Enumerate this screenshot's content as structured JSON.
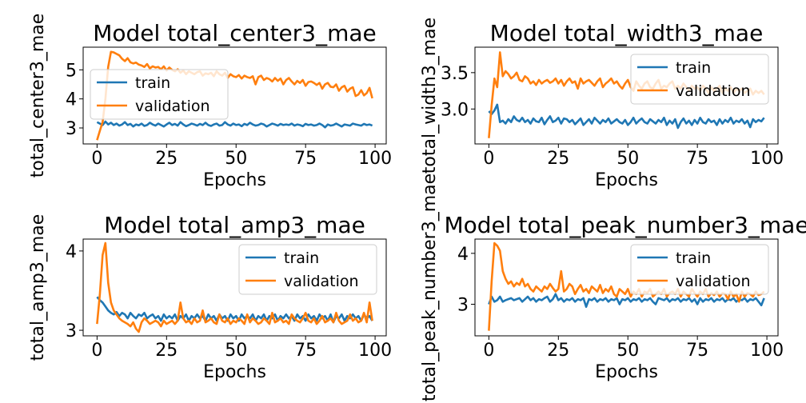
{
  "colors": {
    "train": "#1f77b4",
    "validation": "#ff7f0e"
  },
  "chart_data": [
    {
      "type": "line",
      "title": "Model total_center3_mae",
      "xlabel": "Epochs",
      "ylabel": "total_center3_mae",
      "xlim": [
        -5,
        104
      ],
      "ylim": [
        2.45,
        5.78
      ],
      "xticks": [
        0,
        25,
        50,
        75,
        100
      ],
      "xtick_labels": [
        "0",
        "25",
        "50",
        "75",
        "100"
      ],
      "yticks": [
        3,
        4,
        5
      ],
      "ytick_labels": [
        "3",
        "4",
        "5"
      ],
      "legend": {
        "position": "upper-left",
        "labels": [
          "train",
          "validation"
        ]
      },
      "series": [
        {
          "name": "train",
          "values": [
            3.2,
            3.15,
            3.1,
            3.22,
            3.12,
            3.18,
            3.1,
            3.15,
            3.08,
            3.12,
            3.2,
            3.1,
            3.14,
            3.05,
            3.12,
            3.09,
            3.15,
            3.07,
            3.1,
            3.18,
            3.12,
            3.08,
            3.15,
            3.1,
            3.05,
            3.12,
            3.18,
            3.1,
            3.14,
            3.08,
            3.2,
            3.12,
            3.06,
            3.1,
            3.15,
            3.12,
            3.08,
            3.14,
            3.1,
            3.18,
            3.1,
            3.07,
            3.12,
            3.15,
            3.08,
            3.1,
            3.2,
            3.12,
            3.08,
            3.15,
            3.1,
            3.12,
            3.06,
            3.14,
            3.1,
            3.18,
            3.12,
            3.08,
            3.1,
            3.15,
            3.12,
            3.05,
            3.1,
            3.15,
            3.12,
            3.08,
            3.14,
            3.1,
            3.12,
            3.1,
            3.15,
            3.08,
            3.12,
            3.1,
            3.06,
            3.14,
            3.1,
            3.12,
            3.08,
            3.1,
            3.15,
            3.1,
            3.02,
            3.12,
            3.08,
            3.1,
            3.15,
            3.1,
            3.05,
            3.12,
            3.1,
            3.08,
            3.15,
            3.12,
            3.1,
            3.08,
            3.14,
            3.1,
            3.12,
            3.08
          ]
        },
        {
          "name": "validation",
          "values": [
            2.58,
            2.9,
            3.2,
            4.0,
            5.1,
            5.62,
            5.6,
            5.55,
            5.5,
            5.38,
            5.3,
            5.4,
            5.26,
            5.22,
            5.25,
            5.18,
            5.15,
            5.1,
            5.2,
            5.05,
            5.12,
            5.08,
            5.1,
            5.02,
            5.12,
            4.98,
            5.08,
            5.0,
            4.95,
            5.02,
            4.9,
            4.98,
            4.85,
            4.95,
            4.9,
            4.85,
            4.92,
            4.95,
            4.8,
            4.88,
            4.85,
            4.9,
            4.78,
            4.95,
            4.85,
            4.8,
            4.9,
            4.72,
            4.85,
            4.78,
            4.75,
            4.82,
            4.7,
            4.8,
            4.75,
            4.72,
            4.78,
            4.5,
            4.75,
            4.8,
            4.65,
            4.72,
            4.68,
            4.6,
            4.72,
            4.62,
            4.7,
            4.5,
            4.65,
            4.72,
            4.6,
            4.5,
            4.62,
            4.55,
            4.65,
            4.45,
            4.58,
            4.6,
            4.55,
            4.48,
            4.55,
            4.35,
            4.5,
            4.55,
            4.42,
            4.4,
            4.5,
            4.28,
            4.4,
            4.45,
            4.25,
            4.35,
            4.4,
            4.1,
            4.15,
            4.3,
            4.12,
            4.2,
            4.38,
            4.02
          ]
        }
      ]
    },
    {
      "type": "line",
      "title": "Model total_width3_mae",
      "xlabel": "Epochs",
      "ylabel": "total_width3_mae",
      "xlim": [
        -5,
        104
      ],
      "ylim": [
        2.52,
        3.85
      ],
      "xticks": [
        0,
        25,
        50,
        75,
        100
      ],
      "xtick_labels": [
        "0",
        "25",
        "50",
        "75",
        "100"
      ],
      "yticks": [
        3.0,
        3.5
      ],
      "ytick_labels": [
        "3.0",
        "3.5"
      ],
      "legend": {
        "position": "upper-right",
        "labels": [
          "train",
          "validation"
        ]
      },
      "series": [
        {
          "name": "train",
          "values": [
            2.97,
            2.93,
            2.98,
            3.06,
            2.82,
            2.84,
            2.8,
            2.86,
            2.82,
            2.9,
            2.85,
            2.83,
            2.88,
            2.82,
            2.85,
            2.8,
            2.87,
            2.83,
            2.82,
            2.88,
            2.79,
            2.85,
            2.9,
            2.82,
            2.84,
            2.88,
            2.8,
            2.87,
            2.86,
            2.82,
            2.85,
            2.79,
            2.83,
            2.87,
            2.78,
            2.82,
            2.86,
            2.8,
            2.88,
            2.84,
            2.8,
            2.85,
            2.82,
            2.87,
            2.8,
            2.83,
            2.86,
            2.82,
            2.8,
            2.85,
            2.78,
            2.82,
            2.88,
            2.8,
            2.84,
            2.87,
            2.82,
            2.8,
            2.86,
            2.83,
            2.8,
            2.85,
            2.82,
            2.88,
            2.78,
            2.84,
            2.8,
            2.86,
            2.74,
            2.82,
            2.87,
            2.8,
            2.84,
            2.78,
            2.85,
            2.8,
            2.88,
            2.82,
            2.8,
            2.86,
            2.82,
            2.84,
            2.78,
            2.86,
            2.8,
            2.85,
            2.82,
            2.88,
            2.8,
            2.84,
            2.82,
            2.86,
            2.8,
            2.84,
            2.75,
            2.86,
            2.82,
            2.85,
            2.83,
            2.88
          ]
        },
        {
          "name": "validation",
          "values": [
            2.6,
            3.05,
            3.42,
            3.3,
            3.78,
            3.45,
            3.52,
            3.48,
            3.42,
            3.45,
            3.5,
            3.4,
            3.38,
            3.45,
            3.42,
            3.35,
            3.38,
            3.33,
            3.4,
            3.35,
            3.38,
            3.4,
            3.36,
            3.38,
            3.42,
            3.35,
            3.4,
            3.32,
            3.38,
            3.42,
            3.36,
            3.38,
            3.28,
            3.42,
            3.35,
            3.38,
            3.4,
            3.36,
            3.32,
            3.38,
            3.42,
            3.3,
            3.35,
            3.38,
            3.42,
            3.35,
            3.38,
            3.32,
            3.28,
            3.35,
            3.4,
            3.3,
            3.25,
            3.38,
            3.32,
            3.28,
            3.35,
            3.38,
            3.3,
            3.28,
            3.35,
            3.4,
            3.28,
            3.32,
            3.3,
            3.35,
            3.38,
            3.28,
            3.32,
            3.28,
            3.35,
            3.3,
            3.25,
            3.32,
            3.28,
            3.3,
            3.25,
            3.32,
            3.28,
            3.22,
            3.3,
            3.25,
            3.28,
            3.32,
            3.22,
            3.28,
            3.25,
            3.3,
            3.22,
            3.28,
            3.25,
            3.28,
            3.22,
            3.25,
            3.28,
            3.2,
            3.25,
            3.22,
            3.25,
            3.2
          ]
        }
      ]
    },
    {
      "type": "line",
      "title": "Model total_amp3_mae",
      "xlabel": "Epochs",
      "ylabel": "total_amp3_mae",
      "xlim": [
        -5,
        104
      ],
      "ylim": [
        2.93,
        4.15
      ],
      "xticks": [
        0,
        25,
        50,
        75,
        100
      ],
      "xtick_labels": [
        "0",
        "25",
        "50",
        "75",
        "100"
      ],
      "yticks": [
        3,
        4
      ],
      "ytick_labels": [
        "3",
        "4"
      ],
      "legend": {
        "position": "upper-right",
        "labels": [
          "train",
          "validation"
        ]
      },
      "series": [
        {
          "name": "train",
          "values": [
            3.42,
            3.38,
            3.35,
            3.3,
            3.25,
            3.22,
            3.2,
            3.23,
            3.18,
            3.22,
            3.2,
            3.15,
            3.22,
            3.18,
            3.15,
            3.2,
            3.18,
            3.22,
            3.15,
            3.18,
            3.2,
            3.15,
            3.18,
            3.12,
            3.2,
            3.15,
            3.18,
            3.15,
            3.2,
            3.12,
            3.18,
            3.15,
            3.2,
            3.12,
            3.18,
            3.15,
            3.2,
            3.15,
            3.18,
            3.12,
            3.2,
            3.15,
            3.18,
            3.12,
            3.2,
            3.15,
            3.18,
            3.12,
            3.2,
            3.15,
            3.18,
            3.12,
            3.2,
            3.15,
            3.18,
            3.15,
            3.2,
            3.12,
            3.18,
            3.15,
            3.2,
            3.12,
            3.18,
            3.15,
            3.2,
            3.12,
            3.18,
            3.15,
            3.2,
            3.15,
            3.18,
            3.12,
            3.2,
            3.15,
            3.18,
            3.12,
            3.2,
            3.15,
            3.18,
            3.12,
            3.2,
            3.15,
            3.18,
            3.12,
            3.2,
            3.1,
            3.18,
            3.15,
            3.2,
            3.12,
            3.18,
            3.15,
            3.2,
            3.15,
            3.18,
            3.12,
            3.2,
            3.15,
            3.18,
            3.12
          ]
        },
        {
          "name": "validation",
          "values": [
            3.08,
            3.45,
            3.95,
            4.1,
            3.6,
            3.35,
            3.25,
            3.2,
            3.15,
            3.12,
            3.1,
            3.08,
            3.05,
            3.1,
            3.02,
            2.98,
            3.1,
            3.15,
            3.12,
            3.08,
            3.1,
            3.12,
            3.1,
            3.05,
            3.12,
            3.08,
            3.1,
            3.12,
            3.08,
            3.12,
            3.35,
            3.15,
            3.1,
            3.12,
            3.08,
            3.15,
            3.1,
            3.12,
            3.25,
            3.1,
            3.12,
            3.15,
            3.1,
            3.08,
            3.2,
            3.12,
            3.1,
            3.15,
            3.08,
            3.12,
            3.1,
            3.15,
            3.12,
            3.08,
            3.2,
            3.1,
            3.15,
            3.12,
            3.08,
            3.1,
            3.15,
            3.12,
            3.08,
            3.22,
            3.1,
            3.12,
            3.15,
            3.1,
            3.12,
            3.08,
            3.2,
            3.15,
            3.12,
            3.1,
            3.15,
            3.22,
            3.12,
            3.1,
            3.15,
            3.08,
            3.12,
            3.18,
            3.1,
            3.12,
            3.15,
            3.1,
            3.22,
            3.12,
            3.08,
            3.1,
            3.12,
            3.2,
            3.12,
            3.15,
            3.1,
            3.12,
            3.22,
            3.1,
            3.35,
            3.12
          ]
        }
      ]
    },
    {
      "type": "line",
      "title": "Model total_peak_number3_mae",
      "xlabel": "Epochs",
      "ylabel": "total_peak_number3_mae",
      "xlim": [
        -5,
        104
      ],
      "ylim": [
        2.38,
        4.28
      ],
      "xticks": [
        0,
        25,
        50,
        75,
        100
      ],
      "xtick_labels": [
        "0",
        "25",
        "50",
        "75",
        "100"
      ],
      "yticks": [
        3,
        4
      ],
      "ytick_labels": [
        "3",
        "4"
      ],
      "legend": {
        "position": "upper-right",
        "labels": [
          "train",
          "validation"
        ]
      },
      "series": [
        {
          "name": "train",
          "values": [
            3.0,
            3.15,
            3.05,
            3.08,
            3.15,
            3.05,
            3.08,
            3.1,
            3.12,
            3.08,
            3.1,
            3.12,
            3.05,
            3.1,
            3.15,
            3.08,
            3.12,
            3.05,
            3.1,
            3.08,
            3.12,
            3.15,
            3.05,
            3.1,
            3.2,
            3.08,
            3.12,
            3.05,
            3.1,
            3.08,
            3.12,
            3.05,
            3.1,
            3.08,
            3.12,
            2.95,
            3.1,
            3.08,
            3.12,
            3.05,
            3.1,
            3.08,
            3.12,
            3.05,
            3.1,
            3.08,
            3.12,
            3.0,
            3.1,
            3.08,
            3.12,
            3.05,
            3.1,
            3.08,
            3.12,
            3.05,
            3.1,
            3.08,
            3.12,
            3.05,
            3.0,
            3.12,
            3.1,
            3.08,
            3.12,
            3.05,
            3.1,
            3.08,
            3.12,
            3.05,
            3.1,
            3.08,
            3.12,
            3.05,
            3.1,
            3.0,
            3.12,
            3.05,
            3.1,
            3.08,
            3.12,
            3.05,
            3.1,
            3.08,
            3.12,
            3.05,
            3.1,
            3.08,
            3.12,
            3.05,
            3.1,
            3.08,
            3.12,
            3.05,
            3.1,
            3.08,
            3.12,
            3.05,
            2.98,
            3.12
          ]
        },
        {
          "name": "validation",
          "values": [
            2.48,
            3.45,
            4.2,
            4.15,
            4.05,
            3.65,
            3.5,
            3.4,
            3.45,
            3.35,
            3.42,
            3.38,
            3.5,
            3.35,
            3.4,
            3.3,
            3.25,
            3.35,
            3.3,
            3.25,
            3.35,
            3.3,
            3.4,
            3.32,
            3.25,
            3.3,
            3.65,
            3.25,
            3.3,
            3.4,
            3.35,
            3.2,
            3.3,
            3.38,
            3.25,
            3.3,
            3.22,
            3.35,
            3.3,
            3.25,
            3.38,
            3.22,
            3.3,
            3.25,
            3.35,
            3.2,
            3.15,
            3.3,
            3.25,
            3.2,
            3.3,
            3.15,
            3.25,
            3.2,
            3.3,
            3.15,
            3.25,
            3.22,
            3.3,
            3.15,
            3.2,
            3.25,
            3.2,
            3.3,
            3.15,
            3.22,
            3.25,
            3.2,
            3.3,
            3.15,
            3.25,
            3.2,
            3.15,
            3.3,
            3.22,
            3.15,
            3.25,
            3.2,
            3.3,
            3.15,
            3.22,
            3.18,
            3.25,
            3.15,
            3.22,
            3.2,
            3.1,
            3.25,
            3.15,
            3.2,
            3.05,
            3.25,
            3.15,
            3.22,
            3.2,
            3.15,
            3.25,
            3.18,
            3.2,
            3.25
          ]
        }
      ]
    }
  ]
}
